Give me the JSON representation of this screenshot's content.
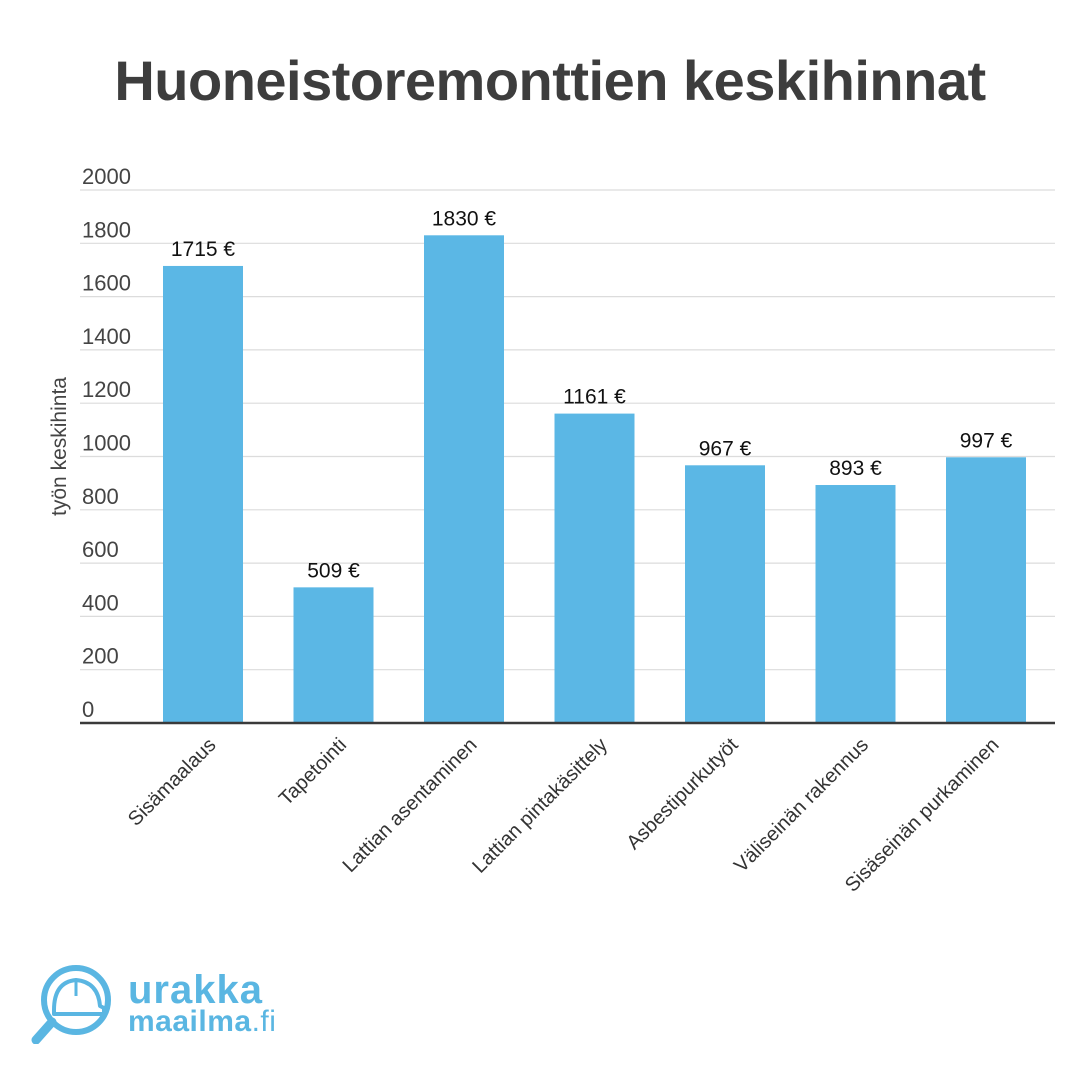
{
  "title": "Huoneistoremonttien keskihinnat",
  "chart_data": {
    "type": "bar",
    "title": "Huoneistoremonttien keskihinnat",
    "xlabel": "",
    "ylabel": "työn keskihinta",
    "ylim": [
      0,
      2000
    ],
    "yticks": [
      0,
      200,
      400,
      600,
      800,
      1000,
      1200,
      1400,
      1600,
      1800,
      2000
    ],
    "grid": true,
    "bar_color": "#5bb7e5",
    "categories": [
      "Sisämaalaus",
      "Tapetointi",
      "Lattian asentaminen",
      "Lattian pintakäsittely",
      "Asbestipurkutyöt",
      "Väliseinän rakennus",
      "Sisäseinän purkaminen"
    ],
    "values": [
      1715,
      509,
      1830,
      1161,
      967,
      893,
      997
    ],
    "value_labels": [
      "1715 €",
      "509 €",
      "1830 €",
      "1161 €",
      "967 €",
      "893 €",
      "997 €"
    ]
  },
  "logo": {
    "line1": "urakka",
    "line2": "maailma",
    "line2_suffix": ".fi",
    "color": "#5ab6e2",
    "icon": "helmet-magnifier-icon"
  }
}
